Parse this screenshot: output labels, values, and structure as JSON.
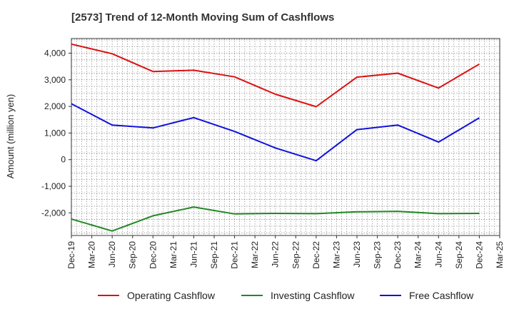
{
  "chart_data": {
    "type": "line",
    "title": "[2573]  Trend of 12-Month Moving Sum of Cashflows",
    "xlabel": "",
    "ylabel": "Amount (million yen)",
    "ylim": [
      -2850,
      4550
    ],
    "yticks": [
      4000,
      3000,
      2000,
      1000,
      0,
      -1000,
      -2000
    ],
    "ytick_labels": [
      "4,000",
      "3,000",
      "2,000",
      "1,000",
      "0",
      "-1,000",
      "-2,000"
    ],
    "x": [
      "Dec-19",
      "Mar-20",
      "Jun-20",
      "Sep-20",
      "Dec-20",
      "Mar-21",
      "Jun-21",
      "Sep-21",
      "Dec-21",
      "Mar-22",
      "Jun-22",
      "Sep-22",
      "Dec-22",
      "Mar-23",
      "Jun-23",
      "Sep-23",
      "Dec-23",
      "Mar-24",
      "Jun-24",
      "Sep-24",
      "Dec-24",
      "Mar-25"
    ],
    "grid": true,
    "legend_position": "bottom",
    "series": [
      {
        "name": "Operating Cashflow",
        "color": "#dd1111",
        "points": [
          [
            "Dec-19",
            4340
          ],
          [
            "Jun-20",
            3980
          ],
          [
            "Dec-20",
            3310
          ],
          [
            "Jun-21",
            3360
          ],
          [
            "Dec-21",
            3110
          ],
          [
            "Jun-22",
            2460
          ],
          [
            "Dec-22",
            1990
          ],
          [
            "Jun-23",
            3100
          ],
          [
            "Dec-23",
            3250
          ],
          [
            "Jun-24",
            2690
          ],
          [
            "Dec-24",
            3590
          ]
        ]
      },
      {
        "name": "Investing Cashflow",
        "color": "#228822",
        "points": [
          [
            "Dec-19",
            -2230
          ],
          [
            "Jun-20",
            -2680
          ],
          [
            "Dec-20",
            -2110
          ],
          [
            "Jun-21",
            -1780
          ],
          [
            "Dec-21",
            -2040
          ],
          [
            "Jun-22",
            -2020
          ],
          [
            "Dec-22",
            -2030
          ],
          [
            "Jun-23",
            -1960
          ],
          [
            "Dec-23",
            -1940
          ],
          [
            "Jun-24",
            -2030
          ],
          [
            "Dec-24",
            -2020
          ]
        ]
      },
      {
        "name": "Free Cashflow",
        "color": "#1111dd",
        "points": [
          [
            "Dec-19",
            2100
          ],
          [
            "Jun-20",
            1300
          ],
          [
            "Dec-20",
            1190
          ],
          [
            "Jun-21",
            1580
          ],
          [
            "Dec-21",
            1060
          ],
          [
            "Jun-22",
            440
          ],
          [
            "Dec-22",
            -40
          ],
          [
            "Jun-23",
            1130
          ],
          [
            "Dec-23",
            1300
          ],
          [
            "Jun-24",
            660
          ],
          [
            "Dec-24",
            1570
          ]
        ]
      }
    ]
  }
}
